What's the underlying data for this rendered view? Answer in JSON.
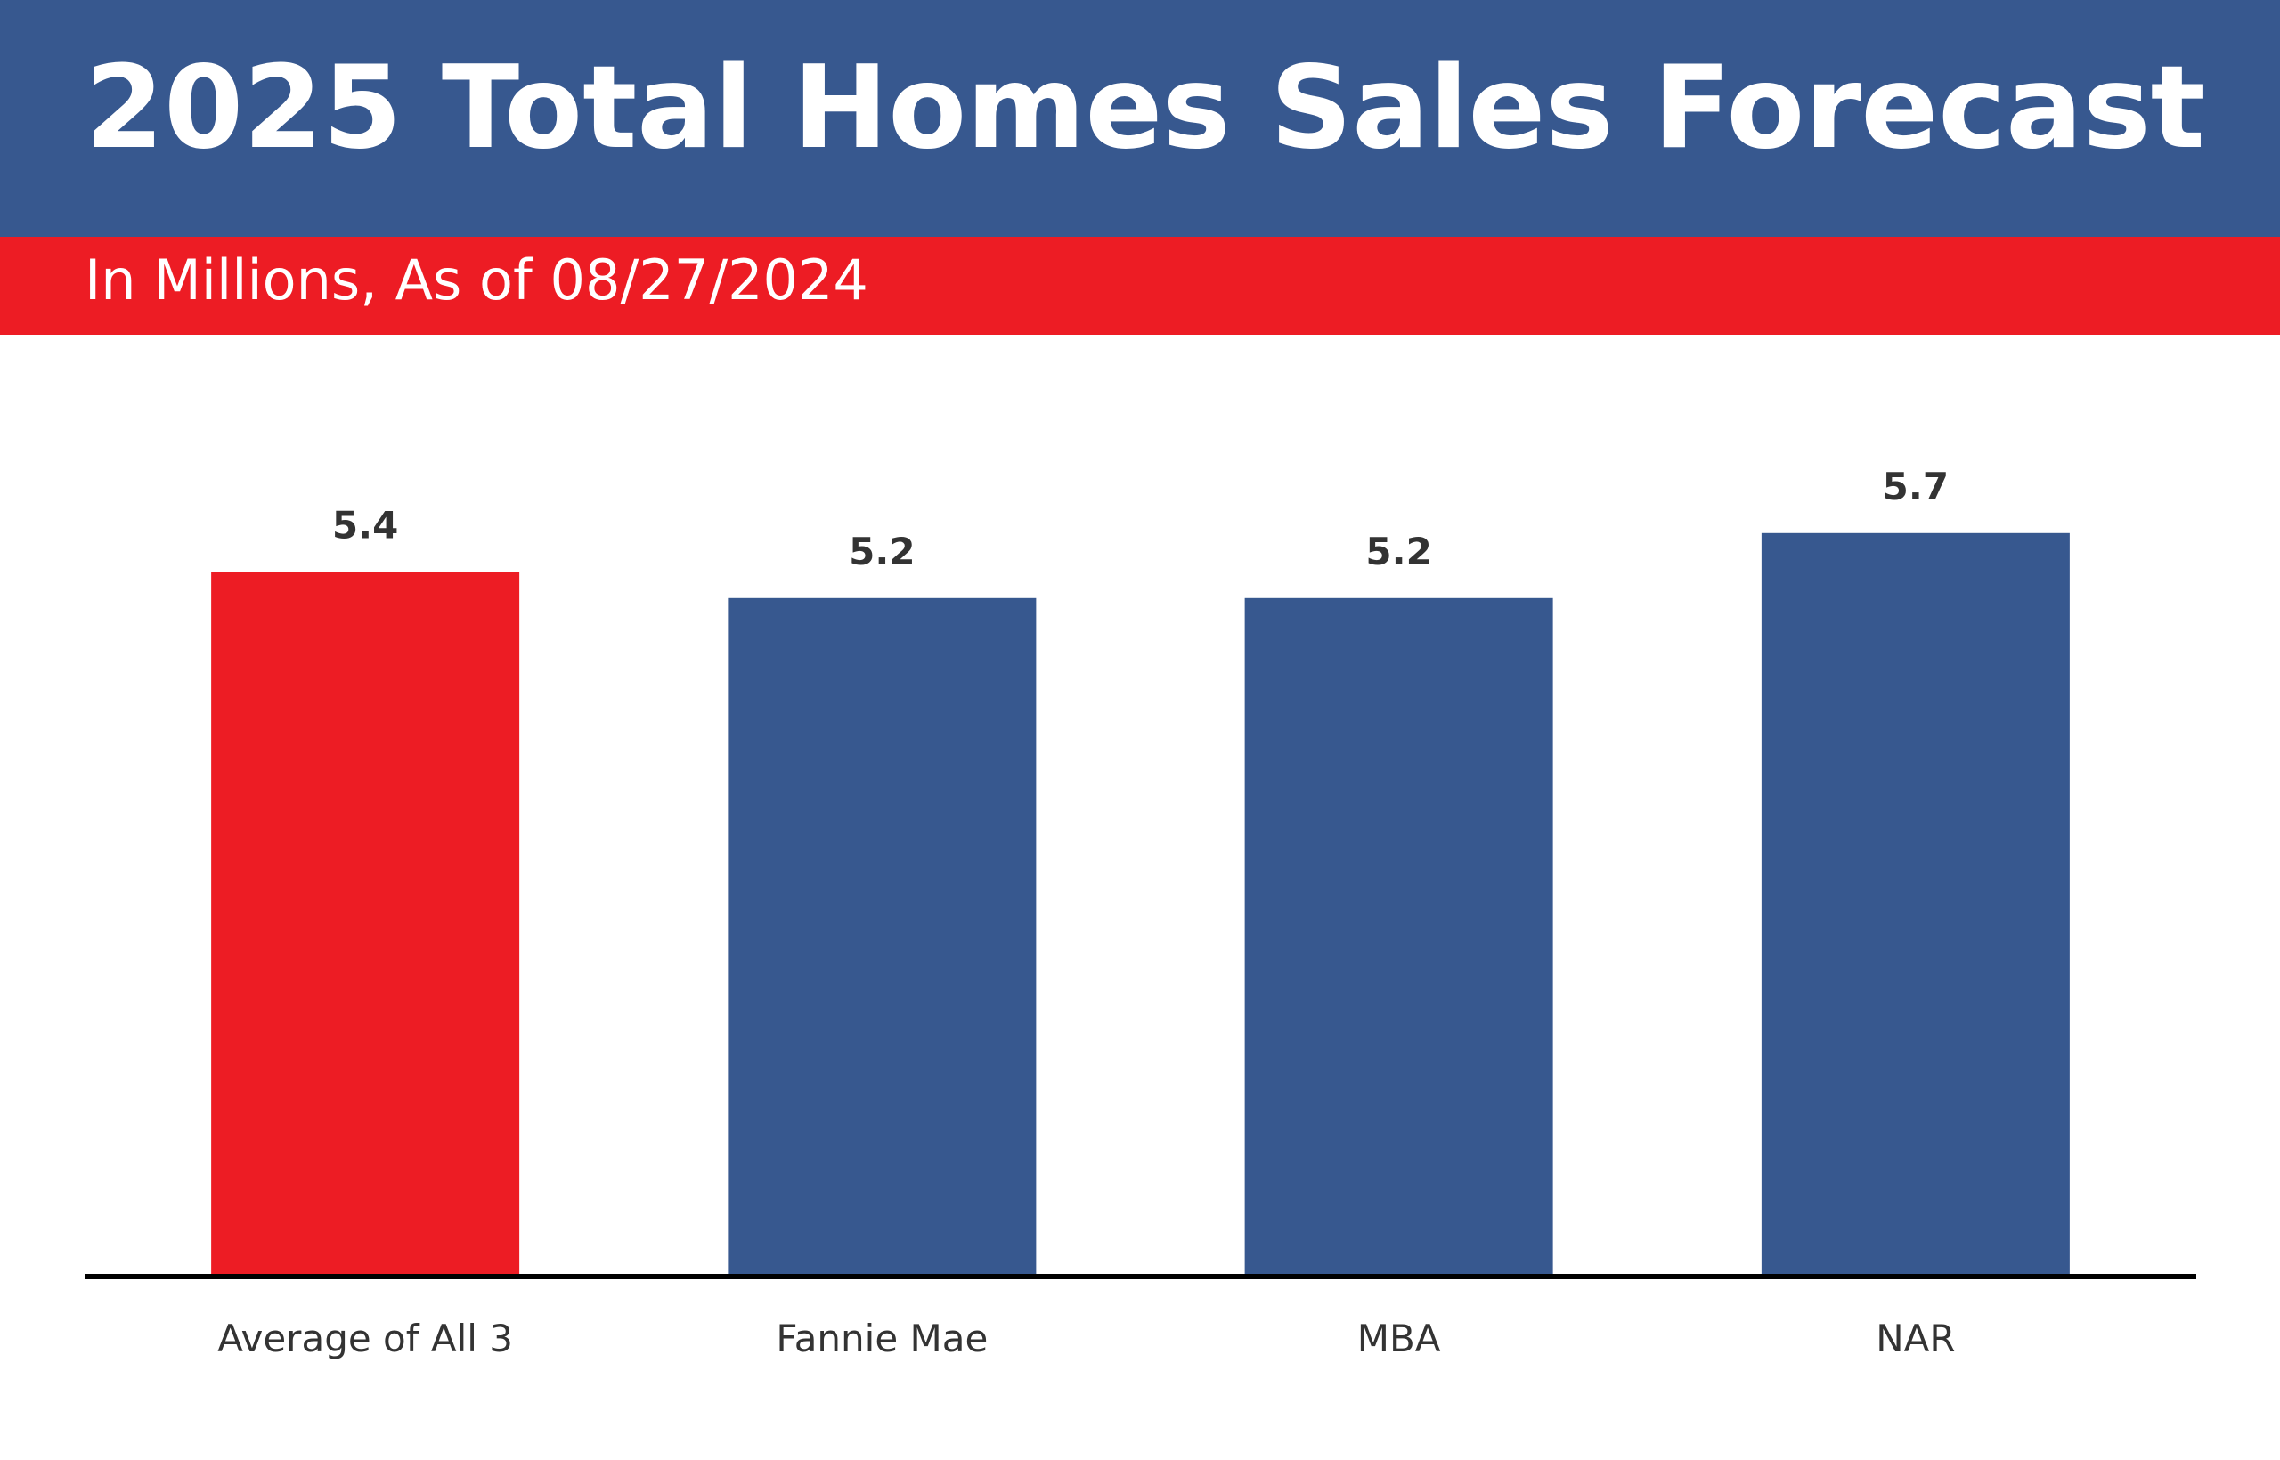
{
  "chart_data": {
    "type": "bar",
    "title": "2025 Total Homes Sales Forecast",
    "subtitle": "In Millions, As of 08/27/2024",
    "categories": [
      "Average of All 3",
      "Fannie Mae",
      "MBA",
      "NAR"
    ],
    "values": [
      5.4,
      5.2,
      5.2,
      5.7
    ],
    "colors": [
      "#ed1c24",
      "#37588f",
      "#37588f",
      "#37588f"
    ]
  }
}
